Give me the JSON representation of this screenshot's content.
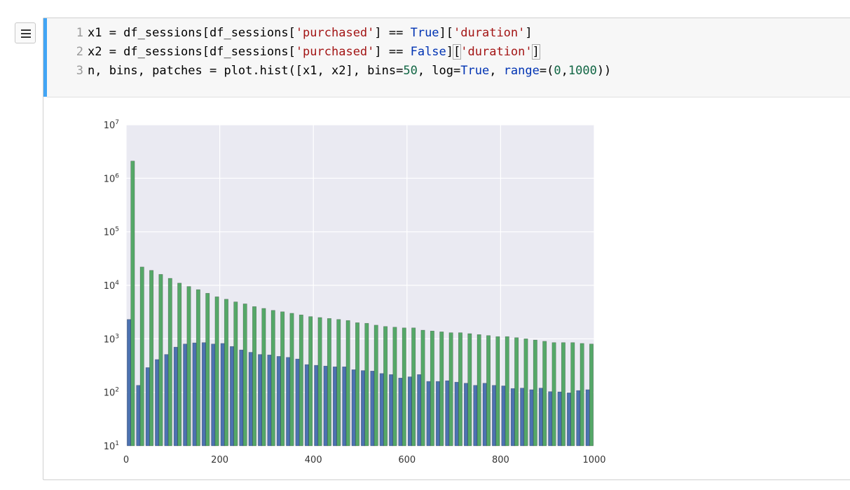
{
  "code": {
    "line_numbers": [
      "1",
      "2",
      "3"
    ],
    "line1": {
      "a": "x1 = df_sessions[df_sessions[",
      "s1": "'purchased'",
      "b": "] == ",
      "kw": "True",
      "c": "][",
      "s2": "'duration'",
      "d": "]"
    },
    "line2": {
      "a": "x2 = df_sessions[df_sessions[",
      "s1": "'purchased'",
      "b": "] == ",
      "kw": "False",
      "c": "]",
      "c2": "[",
      "s2": "'duration'",
      "d": "]"
    },
    "line3": {
      "a": "n, bins, patches = plot.hist([x1, x2], bins=",
      "n1": "50",
      "b": ", log=",
      "kw": "True",
      "c": ", ",
      "kw2": "range",
      "d": "=(",
      "n2": "0",
      "e": ",",
      "n3": "1000",
      "f": "))"
    }
  },
  "chart_data": {
    "type": "bar",
    "log_y": true,
    "xlim": [
      0,
      1000
    ],
    "ylim": [
      10,
      10000000
    ],
    "grid": true,
    "bin_width": 20,
    "x_ticks": [
      "0",
      "200",
      "400",
      "600",
      "800",
      "1000"
    ],
    "y_tick_mantissa": "10",
    "y_tick_exponents": [
      "1",
      "2",
      "3",
      "4",
      "5",
      "6",
      "7"
    ],
    "series": [
      {
        "color": "#4c72b0",
        "values": [
          2300,
          135,
          290,
          410,
          510,
          700,
          800,
          840,
          850,
          800,
          820,
          720,
          620,
          560,
          510,
          500,
          470,
          450,
          420,
          330,
          320,
          310,
          300,
          300,
          265,
          255,
          250,
          225,
          215,
          185,
          195,
          215,
          160,
          160,
          165,
          155,
          148,
          135,
          148,
          135,
          132,
          118,
          120,
          112,
          120,
          103,
          102,
          98,
          108,
          112
        ]
      },
      {
        "color": "#55a868",
        "values": [
          2100000,
          22000,
          19000,
          16000,
          13500,
          11000,
          9500,
          8300,
          7100,
          6100,
          5500,
          4900,
          4500,
          4000,
          3700,
          3400,
          3200,
          3000,
          2800,
          2600,
          2500,
          2400,
          2300,
          2200,
          2000,
          1950,
          1800,
          1700,
          1650,
          1600,
          1600,
          1450,
          1400,
          1350,
          1300,
          1300,
          1250,
          1200,
          1150,
          1100,
          1100,
          1050,
          1000,
          950,
          900,
          850,
          850,
          850,
          820,
          800
        ]
      }
    ]
  }
}
